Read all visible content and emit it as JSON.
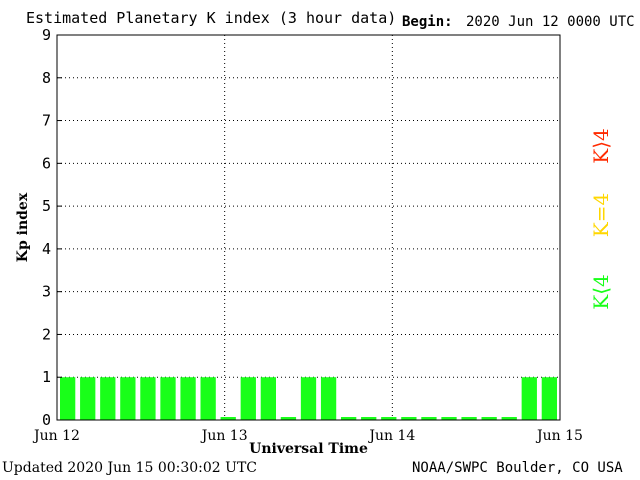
{
  "header": {
    "title": "Estimated Planetary K index (3 hour data)",
    "begin_label": "Begin:",
    "begin_value": "2020 Jun 12 0000 UTC"
  },
  "footer": {
    "updated": "Updated 2020 Jun 15 00:30:02 UTC",
    "credit": "NOAA/SWPC Boulder, CO USA"
  },
  "legend": {
    "items": [
      {
        "label": "K⟨4",
        "color": "#19ff19"
      },
      {
        "label": "K=4",
        "color": "#ffd700"
      },
      {
        "label": "K⟩4",
        "color": "#ff2a00"
      }
    ]
  },
  "chart_data": {
    "type": "bar",
    "xlabel": "Universal Time",
    "ylabel": "Kp index",
    "ylim": [
      0,
      9
    ],
    "yticks": [
      "0",
      "1",
      "2",
      "3",
      "4",
      "5",
      "6",
      "7",
      "8",
      "9"
    ],
    "xticks": [
      "Jun 12",
      "Jun 13",
      "Jun 14",
      "Jun 15"
    ],
    "grid": true,
    "bar_color": "#19ff19",
    "bar_min_value": 0.07,
    "values": [
      1,
      1,
      1,
      1,
      1,
      1,
      1,
      1,
      0,
      1,
      1,
      0,
      1,
      1,
      0,
      0,
      0,
      0,
      0,
      0,
      0,
      0,
      0,
      1,
      1
    ]
  }
}
